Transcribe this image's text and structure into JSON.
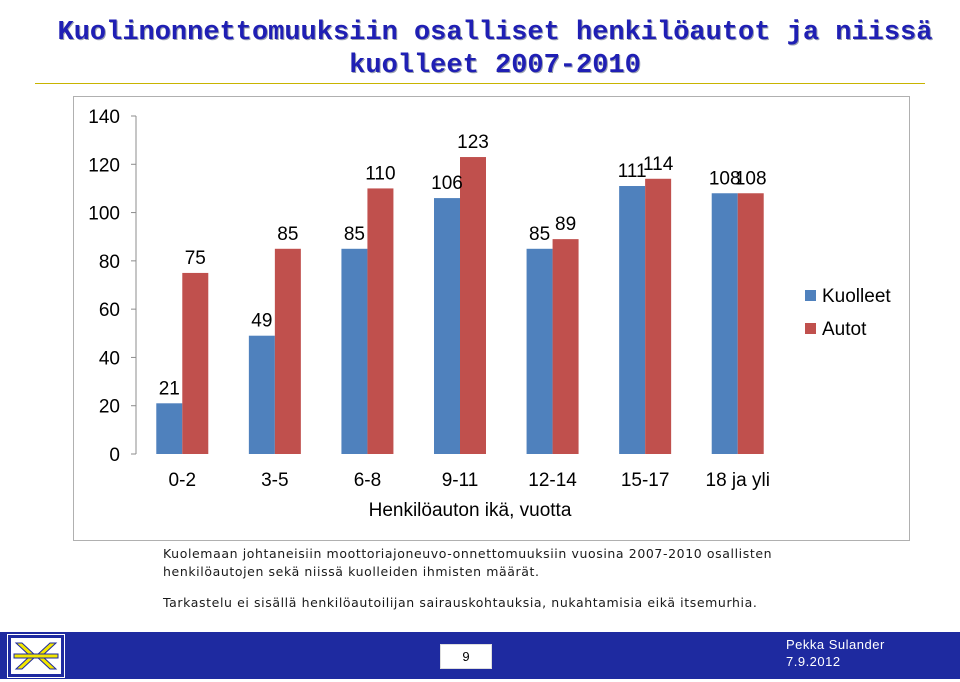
{
  "slide": {
    "title_line1": "Kuolinonnettomuuksiin osalliset henkilöautot ja niissä",
    "title_line2": "kuolleet 2007-2010",
    "caption1": "Kuolemaan johtaneisiin moottoriajoneuvo-onnettomuuksiin vuosina 2007-2010 osallisten  henkilöautojen sekä niissä kuolleiden ihmisten määrät.",
    "caption2": "Tarkastelu ei sisällä henkilöautoilijan sairauskohtauksia, nukahtamisia eikä itsemurhia.",
    "page_number": "9",
    "author_name": "Pekka Sulander",
    "author_date": "7.9.2012"
  },
  "colors": {
    "title": "#1f1fb4",
    "kuolleet": "#4f81bd",
    "autot": "#c0504d",
    "footer": "#1e2aa0",
    "logo_yellow": "#f2e600",
    "logo_blue": "#1e2aa0"
  },
  "chart_data": {
    "type": "bar",
    "categories": [
      "0-2",
      "3-5",
      "6-8",
      "9-11",
      "12-14",
      "15-17",
      "18 ja yli"
    ],
    "series": [
      {
        "name": "Kuolleet",
        "values": [
          21,
          49,
          85,
          106,
          85,
          111,
          108
        ]
      },
      {
        "name": "Autot",
        "values": [
          75,
          85,
          110,
          123,
          89,
          114,
          108
        ]
      }
    ],
    "title": "",
    "xlabel": "Henkilöauton ikä, vuotta",
    "ylabel": "",
    "ylim": [
      0,
      140
    ],
    "yticks": [
      0,
      20,
      40,
      60,
      80,
      100,
      120,
      140
    ],
    "grid": false,
    "legend": "right"
  }
}
